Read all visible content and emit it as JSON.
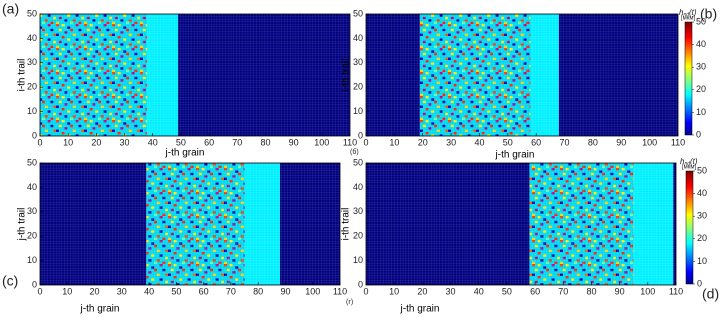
{
  "chart_data": [
    {
      "type": "heatmap",
      "panel_label": "(a)",
      "xlabel": "j-th grain",
      "ylabel": "i-th trail",
      "xlim": [
        0,
        110
      ],
      "ylim": [
        0,
        50
      ],
      "xticks": [
        0,
        10,
        20,
        30,
        40,
        50,
        60,
        70,
        80,
        90,
        100,
        110
      ],
      "yticks": [
        0,
        10,
        20,
        30,
        40,
        50
      ],
      "grid": true,
      "regions": [
        {
          "x": [
            0,
            38
          ],
          "mixed": true
        },
        {
          "x": [
            38,
            49
          ],
          "value": 18
        },
        {
          "x": [
            49,
            110
          ],
          "value": 0
        }
      ],
      "colorbar": false
    },
    {
      "type": "heatmap",
      "panel_label": "(b)",
      "sub_label": "(б)",
      "xlabel": "j-th grain",
      "ylabel": "i-th trail",
      "xlim": [
        0,
        110
      ],
      "ylim": [
        0,
        50
      ],
      "xticks": [
        0,
        10,
        20,
        30,
        40,
        50,
        60,
        70,
        80,
        90,
        100,
        110
      ],
      "yticks": [
        0,
        10,
        20,
        30,
        40,
        50
      ],
      "grid": true,
      "regions": [
        {
          "x": [
            0,
            19
          ],
          "value": 0
        },
        {
          "x": [
            19,
            58
          ],
          "mixed": true
        },
        {
          "x": [
            58,
            68
          ],
          "value": 18
        },
        {
          "x": [
            68,
            110
          ],
          "value": 0
        }
      ],
      "colorbar": true,
      "clim": [
        0,
        50
      ],
      "cticks": [
        0,
        10,
        20,
        30,
        40,
        50
      ],
      "clabel": "h",
      "clabel_sub": "nd",
      "clabel_tail": "(t)",
      "cunit": "[мкм]"
    },
    {
      "type": "heatmap",
      "panel_label": "(c)",
      "xlabel": "j-th grain",
      "ylabel": "j-th trail",
      "xlim": [
        0,
        110
      ],
      "ylim": [
        0,
        50
      ],
      "xticks": [
        0,
        10,
        20,
        30,
        40,
        50,
        60,
        70,
        80,
        90,
        100,
        110
      ],
      "yticks": [
        0,
        10,
        20,
        30,
        40,
        50
      ],
      "grid": true,
      "regions": [
        {
          "x": [
            0,
            39
          ],
          "value": 0
        },
        {
          "x": [
            39,
            75
          ],
          "mixed": true
        },
        {
          "x": [
            75,
            88
          ],
          "value": 18
        },
        {
          "x": [
            88,
            110
          ],
          "value": 0
        }
      ],
      "colorbar": false
    },
    {
      "type": "heatmap",
      "panel_label": "(d)",
      "sub_label": "(г)",
      "xlabel": "j-th grain",
      "ylabel": "i-th trail",
      "xlim": [
        0,
        110
      ],
      "ylim": [
        0,
        50
      ],
      "xticks": [
        0,
        10,
        20,
        30,
        40,
        50,
        60,
        70,
        80,
        90,
        100,
        110
      ],
      "yticks": [
        0,
        10,
        20,
        30,
        40,
        50
      ],
      "grid": true,
      "regions": [
        {
          "x": [
            0,
            58
          ],
          "value": 0
        },
        {
          "x": [
            58,
            95
          ],
          "mixed": true
        },
        {
          "x": [
            95,
            109
          ],
          "value": 18
        },
        {
          "x": [
            109,
            110
          ],
          "value": 0
        }
      ],
      "colorbar": true,
      "clim": [
        0,
        50
      ],
      "cticks": [
        0,
        10,
        20,
        30,
        40,
        50
      ],
      "clabel": "h",
      "clabel_sub": "nd",
      "clabel_tail": "(t)",
      "cunit": "[мкм]"
    }
  ]
}
